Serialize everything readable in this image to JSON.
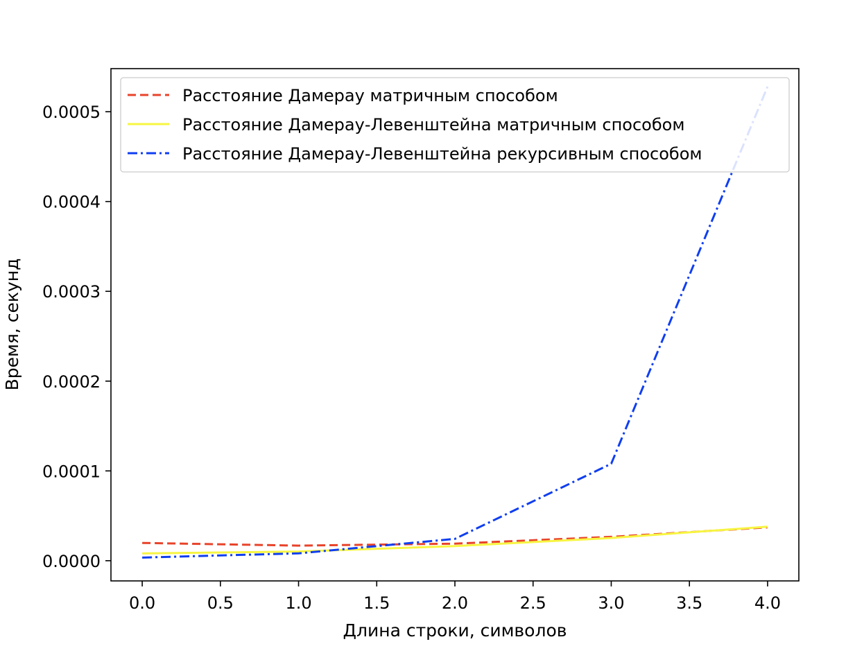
{
  "chart_data": {
    "type": "line",
    "title": "",
    "xlabel": "Длина строки, символов",
    "ylabel": "Время, секунд",
    "xlim": [
      -0.2,
      4.2
    ],
    "ylim": [
      -2.25e-05,
      0.000548
    ],
    "xticks": [
      0.0,
      0.5,
      1.0,
      1.5,
      2.0,
      2.5,
      3.0,
      3.5,
      4.0
    ],
    "xtick_labels": [
      "0.0",
      "0.5",
      "1.0",
      "1.5",
      "2.0",
      "2.5",
      "3.0",
      "3.5",
      "4.0"
    ],
    "yticks": [
      0.0,
      0.0001,
      0.0002,
      0.0003,
      0.0004,
      0.0005
    ],
    "ytick_labels": [
      "0.0000",
      "0.0001",
      "0.0002",
      "0.0003",
      "0.0004",
      "0.0005"
    ],
    "grid": false,
    "legend_position": "top-left",
    "x": [
      0,
      1,
      2,
      3,
      4
    ],
    "series": [
      {
        "name": "Расстояние Дамерау матричным способом",
        "color": "#e8432a",
        "style": "dashed",
        "values": [
          1.98e-05,
          1.68e-05,
          1.9e-05,
          2.66e-05,
          3.71e-05
        ]
      },
      {
        "name": "Расстояние Дамерау-Левенштейна матричным способом",
        "color": "#f7f542",
        "style": "solid",
        "values": [
          8.1e-06,
          1.02e-05,
          1.63e-05,
          2.53e-05,
          3.79e-05
        ]
      },
      {
        "name": "Расстояние Дамерау-Левенштейна рекурсивным способом",
        "color": "#0f3ef0",
        "style": "dashdot",
        "values": [
          3.5e-06,
          8.2e-06,
          2.43e-05,
          0.000108,
          0.000528
        ]
      }
    ]
  }
}
